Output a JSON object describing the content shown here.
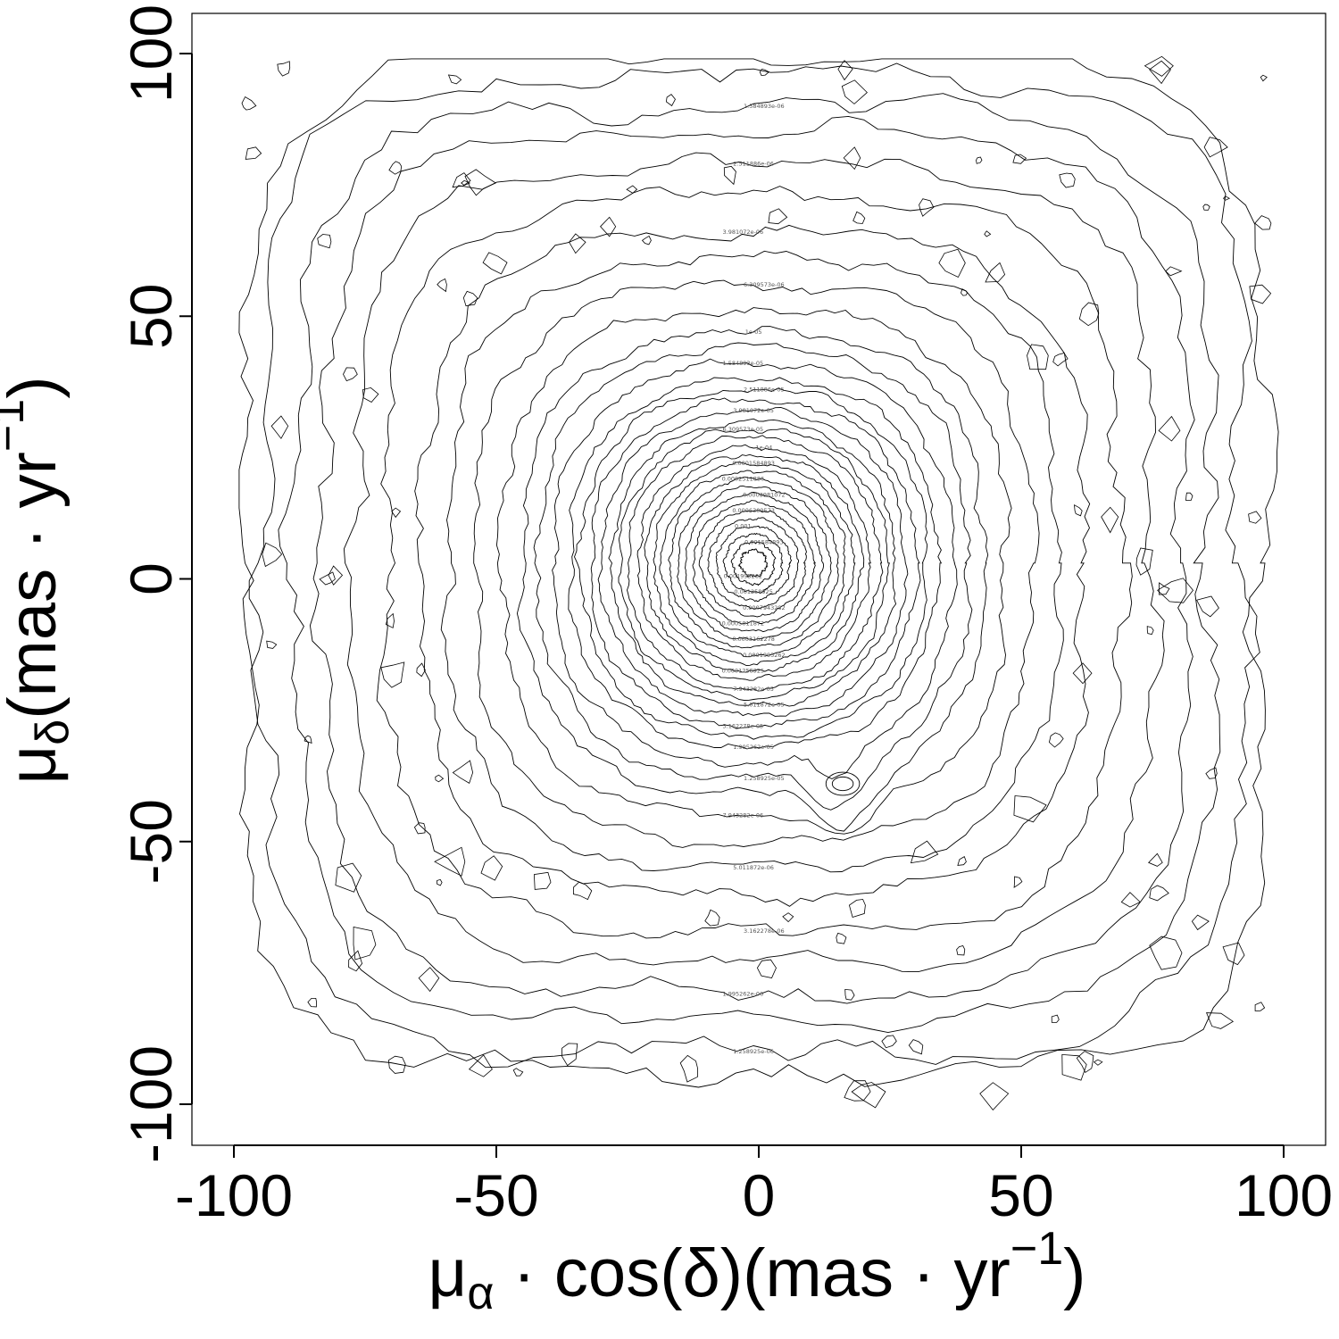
{
  "chart_data": {
    "type": "contour",
    "title": "",
    "xlabel": "μ_α · cos(δ)(mas · yr^−1)",
    "ylabel": "μ_δ(mas · yr^−1)",
    "xlabel_parts": {
      "mu": "μ",
      "sub": "α",
      "rest": " · cos(δ)(mas · yr",
      "sup": "−1",
      "close": ")"
    },
    "ylabel_parts": {
      "mu": "μ",
      "sub": "δ",
      "rest": "(mas · yr",
      "sup": "−1",
      "close": ")"
    },
    "xlim": [
      -108,
      108
    ],
    "ylim": [
      -108,
      108
    ],
    "x_ticks": [
      -100,
      -50,
      0,
      50,
      100
    ],
    "y_ticks": [
      -100,
      -50,
      0,
      50,
      100
    ],
    "x_tick_labels": [
      "-100",
      "-50",
      "0",
      "50",
      "100"
    ],
    "y_tick_labels": [
      "-100",
      "-50",
      "0",
      "50",
      "100"
    ],
    "grid": false,
    "peak": {
      "x": -1,
      "y": 3
    },
    "secondary_peak": {
      "x": 16,
      "y": -39
    },
    "levels": [
      {
        "label": "1e-06",
        "radius": 97
      },
      {
        "label": "1.258925e-06",
        "radius": 93
      },
      {
        "label": "1.584893e-06",
        "radius": 87
      },
      {
        "label": "1.995262e-06",
        "radius": 82
      },
      {
        "label": "2.511886e-06",
        "radius": 76
      },
      {
        "label": "3.162278e-06",
        "radius": 70
      },
      {
        "label": "3.981072e-06",
        "radius": 63
      },
      {
        "label": "5.011872e-06",
        "radius": 58
      },
      {
        "label": "6.309573e-06",
        "radius": 53
      },
      {
        "label": "7.943282e-06",
        "radius": 48
      },
      {
        "label": "1e-05",
        "radius": 44
      },
      {
        "label": "1.258925e-05",
        "radius": 41
      },
      {
        "label": "1.584893e-05",
        "radius": 38
      },
      {
        "label": "1.995262e-05",
        "radius": 35
      },
      {
        "label": "2.511886e-05",
        "radius": 33
      },
      {
        "label": "3.162278e-05",
        "radius": 31
      },
      {
        "label": "3.981072e-05",
        "radius": 29
      },
      {
        "label": "5.011872e-05",
        "radius": 27
      },
      {
        "label": "6.309573e-05",
        "radius": 25.5
      },
      {
        "label": "7.943282e-05",
        "radius": 24
      },
      {
        "label": "1e-04",
        "radius": 22
      },
      {
        "label": "0.0001258925",
        "radius": 20.5
      },
      {
        "label": "0.0001584893",
        "radius": 19
      },
      {
        "label": "0.0001995262",
        "radius": 17.5
      },
      {
        "label": "0.0002511886",
        "radius": 16
      },
      {
        "label": "0.0003162278",
        "radius": 14.5
      },
      {
        "label": "0.0003981072",
        "radius": 13
      },
      {
        "label": "0.0005011872",
        "radius": 11.5
      },
      {
        "label": "0.0006309573",
        "radius": 10
      },
      {
        "label": "0.0007943282",
        "radius": 8.5
      },
      {
        "label": "0.001",
        "radius": 7
      },
      {
        "label": "0.001258925",
        "radius": 5.5
      },
      {
        "label": "0.001584893",
        "radius": 4
      },
      {
        "label": "0.001995262",
        "radius": 2.5
      }
    ]
  }
}
